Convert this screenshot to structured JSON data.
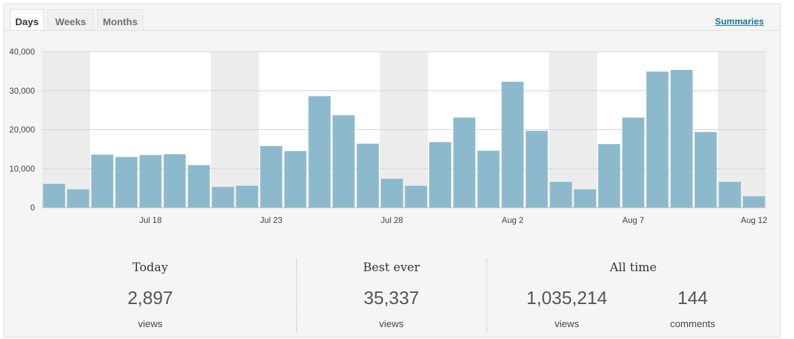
{
  "tabs": [
    {
      "label": "Days",
      "active": true
    },
    {
      "label": "Weeks",
      "active": false
    },
    {
      "label": "Months",
      "active": false
    }
  ],
  "summaries_link": "Summaries",
  "chart_data": {
    "type": "bar",
    "y_ticks": [
      "0",
      "10,000",
      "20,000",
      "30,000",
      "40,000"
    ],
    "ylim": [
      0,
      40000
    ],
    "x_tick_labels": [
      "Jul 18",
      "Jul 23",
      "Jul 28",
      "Aug 2",
      "Aug 7",
      "Aug 12"
    ],
    "values": [
      6100,
      4700,
      13600,
      13000,
      13500,
      13700,
      10900,
      5300,
      5600,
      15800,
      14500,
      28600,
      23700,
      16400,
      7400,
      5600,
      16800,
      23100,
      14600,
      32300,
      19700,
      6600,
      4700,
      16300,
      23100,
      34900,
      35337,
      19400,
      6600,
      2897
    ],
    "weekend_bands": [
      [
        0,
        1
      ],
      [
        7,
        8
      ],
      [
        14,
        15
      ],
      [
        21,
        22
      ],
      [
        28,
        29
      ]
    ],
    "bar_color": "#8db9cd",
    "weekend_color": "#ececec",
    "grid": true
  },
  "stats": {
    "today": {
      "title": "Today",
      "value": "2,897",
      "unit": "views"
    },
    "best_ever": {
      "title": "Best ever",
      "value": "35,337",
      "unit": "views"
    },
    "all_time": {
      "title": "All time",
      "views_value": "1,035,214",
      "views_unit": "views",
      "comments_value": "144",
      "comments_unit": "comments"
    }
  }
}
